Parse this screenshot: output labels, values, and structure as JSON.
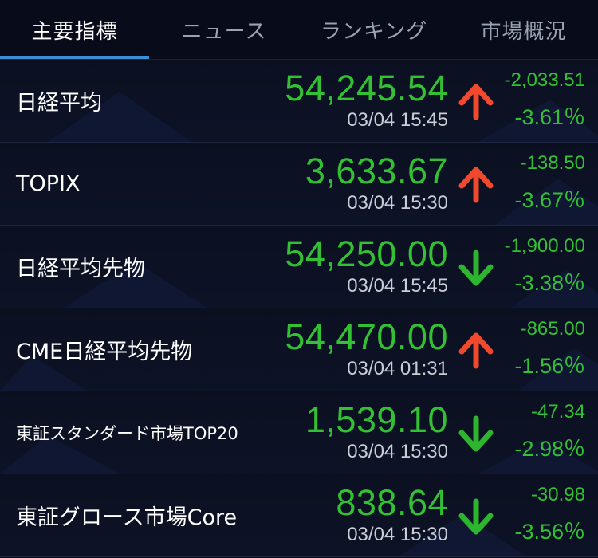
{
  "tabs": [
    {
      "label": "主要指標",
      "active": true
    },
    {
      "label": "ニュース",
      "active": false
    },
    {
      "label": "ランキング",
      "active": false
    },
    {
      "label": "市場概況",
      "active": false
    }
  ],
  "colors": {
    "background": "#0b1021",
    "value_green": "#33c133",
    "arrow_up_red": "#f0492e",
    "arrow_down_green": "#2db52d",
    "tab_indicator": "#3a8fd8"
  },
  "rows": [
    {
      "name": "日経平均",
      "price": "54,245.54",
      "time": "03/04 15:45",
      "direction": "up",
      "icon": "arrow-up-icon",
      "change": "-2,033.51",
      "percent": "-3.61％"
    },
    {
      "name": "TOPIX",
      "price": "3,633.67",
      "time": "03/04 15:30",
      "direction": "up",
      "icon": "arrow-up-icon",
      "change": "-138.50",
      "percent": "-3.67％"
    },
    {
      "name": "日経平均先物",
      "price": "54,250.00",
      "time": "03/04 15:45",
      "direction": "down",
      "icon": "arrow-down-icon",
      "change": "-1,900.00",
      "percent": "-3.38％"
    },
    {
      "name": "CME日経平均先物",
      "price": "54,470.00",
      "time": "03/04 01:31",
      "direction": "up",
      "icon": "arrow-up-icon",
      "change": "-865.00",
      "percent": "-1.56％"
    },
    {
      "name": "東証スタンダード市場TOP20",
      "price": "1,539.10",
      "time": "03/04 15:30",
      "direction": "down",
      "icon": "arrow-down-icon",
      "change": "-47.34",
      "percent": "-2.98％"
    },
    {
      "name": "東証グロース市場Core",
      "price": "838.64",
      "time": "03/04 15:30",
      "direction": "down",
      "icon": "arrow-down-icon",
      "change": "-30.98",
      "percent": "-3.56％"
    }
  ]
}
